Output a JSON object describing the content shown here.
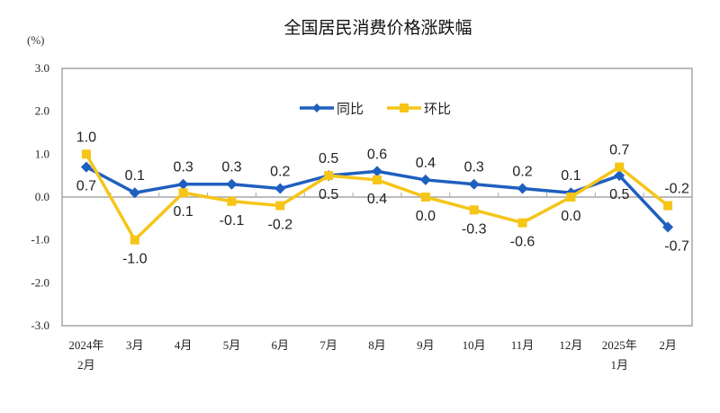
{
  "chart_data": {
    "type": "line",
    "title": "全国居民消费价格涨跌幅",
    "ylabel": "(%)",
    "ylim": [
      -3.0,
      3.0
    ],
    "yticks": [
      "3.0",
      "2.0",
      "1.0",
      "0.0",
      "-1.0",
      "-2.0",
      "-3.0"
    ],
    "grid": false,
    "legend_position": "top-center",
    "categories": [
      [
        "2024年",
        "2月"
      ],
      [
        "3月"
      ],
      [
        "4月"
      ],
      [
        "5月"
      ],
      [
        "6月"
      ],
      [
        "7月"
      ],
      [
        "8月"
      ],
      [
        "9月"
      ],
      [
        "10月"
      ],
      [
        "11月"
      ],
      [
        "12月"
      ],
      [
        "2025年",
        "1月"
      ],
      [
        "2月"
      ]
    ],
    "series": [
      {
        "name": "同比",
        "color": "#1F5FBF",
        "marker": "diamond",
        "values": [
          0.7,
          0.1,
          0.3,
          0.3,
          0.2,
          0.5,
          0.6,
          0.4,
          0.3,
          0.2,
          0.1,
          0.5,
          -0.7
        ],
        "labels": [
          "0.7",
          "0.1",
          "0.3",
          "0.3",
          "0.2",
          "0.5",
          "0.6",
          "0.4",
          "0.3",
          "0.2",
          "0.1",
          "0.5",
          "-0.7"
        ]
      },
      {
        "name": "环比",
        "color": "#F5C518",
        "marker": "square",
        "values": [
          1.0,
          -1.0,
          0.1,
          -0.1,
          -0.2,
          0.5,
          0.4,
          0.0,
          -0.3,
          -0.6,
          0.0,
          0.7,
          -0.2
        ],
        "labels": [
          "1.0",
          "-1.0",
          "0.1",
          "-0.1",
          "-0.2",
          "0.5",
          "0.4",
          "0.0",
          "-0.3",
          "-0.6",
          "0.0",
          "0.7",
          "-0.2"
        ]
      }
    ]
  }
}
